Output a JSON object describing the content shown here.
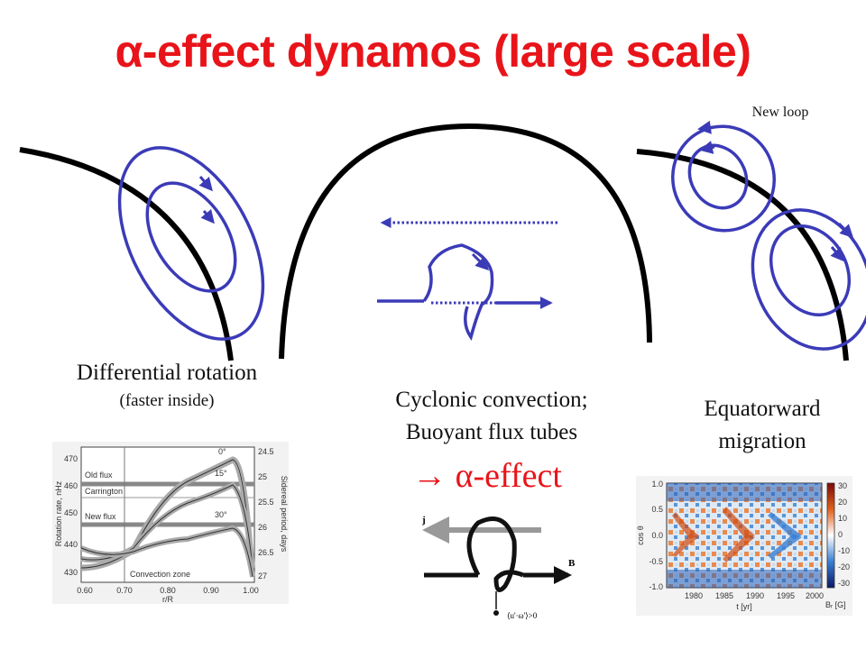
{
  "title": "α-effect dynamos (large scale)",
  "labels": {
    "new_loop": "New loop",
    "diff_rotation": "Differential rotation",
    "faster_inside": "(faster inside)",
    "cyclonic_line1": "Cyclonic convection;",
    "cyclonic_line2": "Buoyant flux tubes",
    "alpha_effect": "→  α-effect",
    "equatorward_line1": "Equatorward",
    "equatorward_line2": "migration"
  },
  "rotation_plot": {
    "y_ticks": [
      "470",
      "460",
      "450",
      "440",
      "430"
    ],
    "y_label": "Rotation rate, nHz",
    "x_ticks": [
      "0.60",
      "0.70",
      "0.80",
      "0.90",
      "1.00"
    ],
    "x_label": "r/R",
    "right_ticks": [
      "24.5",
      "25",
      "25.5",
      "26",
      "26.5",
      "27"
    ],
    "right_label": "Sidereal period, days",
    "annotations": [
      "Old flux",
      "Carrington",
      "New flux",
      "Convection zone",
      "0°",
      "15°",
      "30°"
    ]
  },
  "flux_tube_labels": {
    "j": "j",
    "B": "B",
    "uw": "⟨u'·ω'⟩>0"
  },
  "butterfly_plot": {
    "y_ticks": [
      "1.0",
      "0.5",
      "0.0",
      "-0.5",
      "-1.0"
    ],
    "y_label": "cos θ",
    "x_ticks": [
      "1980",
      "1985",
      "1990",
      "1995",
      "2000"
    ],
    "x_label": "t [yr]",
    "cb_ticks": [
      "30",
      "20",
      "10",
      "0",
      "-10",
      "-20",
      "-30"
    ],
    "cb_label": "Bᵣ [G]"
  },
  "colors": {
    "title": "#e8141a",
    "loop": "#3b3bb8",
    "boundary": "#000000"
  }
}
